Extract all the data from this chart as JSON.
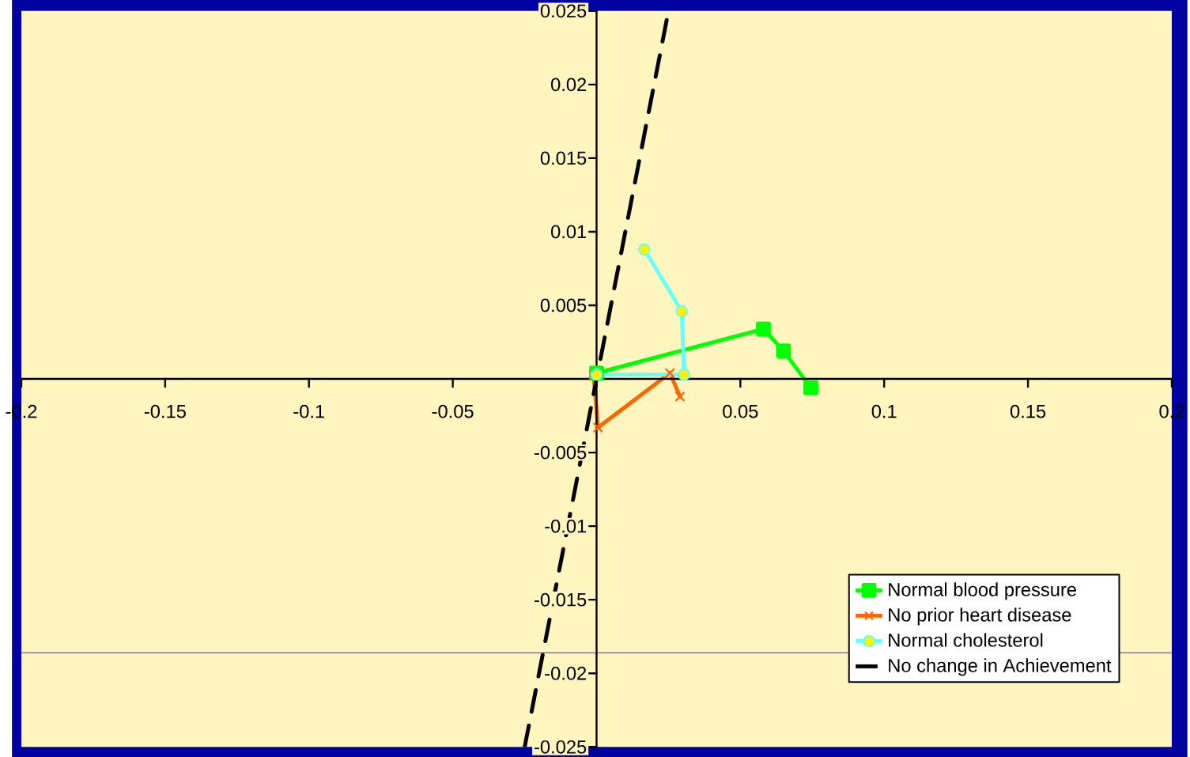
{
  "chart_data": {
    "type": "line",
    "xlim": [
      -0.2,
      0.2
    ],
    "ylim": [
      -0.025,
      0.025
    ],
    "xticks": [
      -0.2,
      -0.15,
      -0.1,
      -0.05,
      {
        "value": 0,
        "label": null
      },
      0.05,
      0.1,
      0.15,
      0.2
    ],
    "yticks": [
      -0.025,
      -0.02,
      -0.015,
      -0.01,
      -0.005,
      0.005,
      0.01,
      0.015,
      0.02,
      0.025
    ],
    "legend": "bottom right",
    "ref_lines": [
      {
        "axis": "y",
        "value": -0.0186,
        "color": "#0000cc"
      }
    ],
    "series": [
      {
        "name": "Normal blood pressure",
        "color": "#00ff00",
        "marker": "square",
        "line_style": "solid",
        "x": [
          0,
          0.058,
          0.065,
          0.0745
        ],
        "values": [
          0.0004,
          0.0034,
          0.0019,
          -0.0006
        ]
      },
      {
        "name": "No prior heart disease",
        "color": "#ff6600",
        "marker": "cross",
        "line_style": "solid",
        "x": [
          -0.001,
          0.0005,
          0.0255,
          0.029
        ],
        "values": [
          0.0002,
          -0.0033,
          0.0004,
          -0.0012
        ]
      },
      {
        "name": "Normal cholesterol",
        "color": "#66ffff",
        "marker": "circle",
        "line_style": "solid",
        "x": [
          0,
          0.0304,
          0.0296,
          0.0166
        ],
        "values": [
          0.0003,
          0.0003,
          0.0046,
          0.0088
        ]
      },
      {
        "name": "No change in  Achievement",
        "color": "#000000",
        "marker": "none",
        "line_style": "dashed",
        "x": [
          -0.025,
          0.025
        ],
        "values": [
          -0.025,
          0.025
        ]
      }
    ]
  }
}
